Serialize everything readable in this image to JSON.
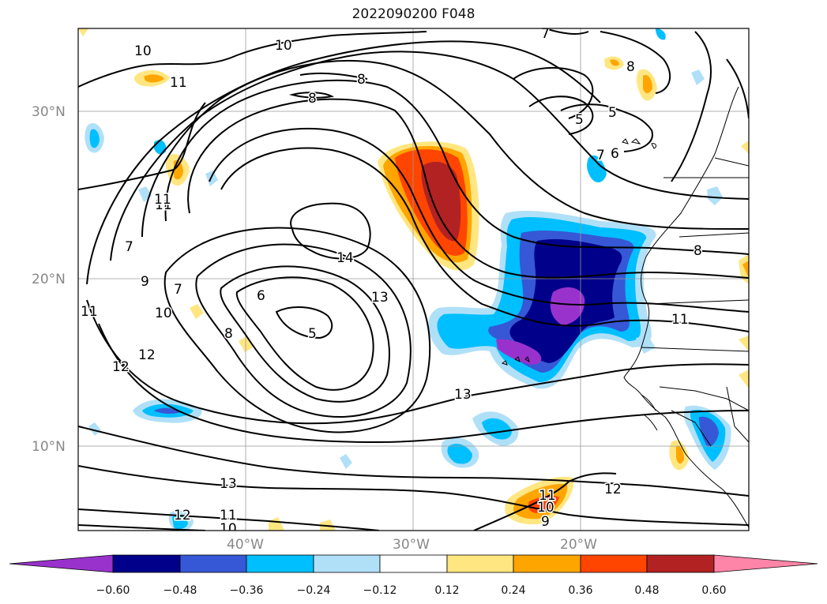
{
  "title": "2022090200 F048",
  "lat_labels": [
    "30°N",
    "20°N",
    "10°N"
  ],
  "lon_labels": [
    "40°W",
    "30°W",
    "20°W"
  ],
  "contour_labels": [
    "10",
    "10",
    "11",
    "8",
    "8",
    "7",
    "8",
    "5",
    "5",
    "7",
    "6",
    "11",
    "11",
    "14",
    "7",
    "9",
    "7",
    "6",
    "13",
    "10",
    "8",
    "5",
    "11",
    "11",
    "12",
    "12",
    "13",
    "8",
    "13",
    "12",
    "11",
    "10",
    "12",
    "10",
    "11",
    "9"
  ],
  "colorbar": {
    "labels": [
      "−0.60",
      "−0.48",
      "−0.36",
      "−0.24",
      "−0.12",
      "0.12",
      "0.24",
      "0.36",
      "0.48",
      "0.60"
    ],
    "colors": [
      "#9932CC",
      "#00008B",
      "#3658D6",
      "#00BFFF",
      "#B0E0F8",
      "#FFFFFF",
      "#FFE680",
      "#FFA500",
      "#FF4500",
      "#B22222",
      "#FF85A8"
    ]
  },
  "fill_colors": {
    "orange": "#FFA500",
    "red_orange": "#FF4500",
    "dark_red": "#B22222",
    "light_yellow": "#FFE680",
    "purple": "#9932CC",
    "navy": "#00008B",
    "royal_blue": "#3658D6",
    "sky_blue": "#00BFFF",
    "pale_blue": "#B0E0F8"
  }
}
